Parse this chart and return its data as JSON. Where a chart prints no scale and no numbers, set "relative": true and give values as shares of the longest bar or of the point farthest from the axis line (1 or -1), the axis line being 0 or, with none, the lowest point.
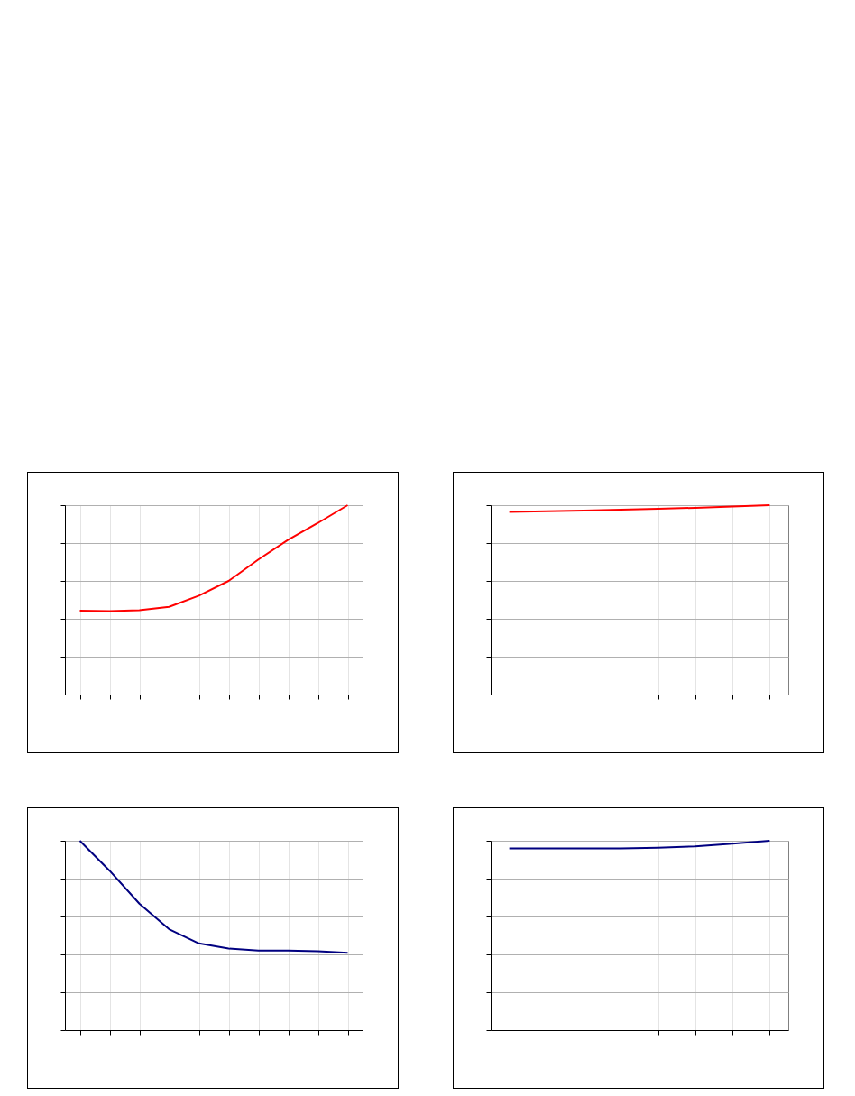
{
  "chart_data": [
    {
      "type": "line",
      "relative": true,
      "categories": [
        null,
        null,
        null,
        null,
        null,
        null,
        null,
        null,
        null,
        null
      ],
      "series": [
        {
          "color": "#ff0000",
          "values": [
            0.443,
            0.441,
            0.445,
            0.463,
            0.522,
            0.6,
            0.713,
            0.817,
            0.906,
            1
          ]
        }
      ],
      "grid": true
    },
    {
      "type": "line",
      "relative": true,
      "categories": [
        null,
        null,
        null,
        null,
        null,
        null,
        null,
        null
      ],
      "series": [
        {
          "color": "#ff0000",
          "values": [
            0.964,
            0.968,
            0.972,
            0.976,
            0.981,
            0.986,
            0.993,
            1
          ]
        }
      ],
      "grid": true
    },
    {
      "type": "line",
      "relative": true,
      "categories": [
        null,
        null,
        null,
        null,
        null,
        null,
        null,
        null,
        null,
        null
      ],
      "series": [
        {
          "color": "#000080",
          "values": [
            1,
            0.842,
            0.668,
            0.533,
            0.458,
            0.431,
            0.42,
            0.42,
            0.417,
            0.408
          ]
        }
      ],
      "grid": true
    },
    {
      "type": "line",
      "relative": true,
      "categories": [
        null,
        null,
        null,
        null,
        null,
        null,
        null,
        null
      ],
      "series": [
        {
          "color": "#000080",
          "values": [
            0.959,
            0.959,
            0.959,
            0.959,
            0.963,
            0.97,
            0.985,
            1
          ]
        }
      ],
      "grid": true
    }
  ]
}
